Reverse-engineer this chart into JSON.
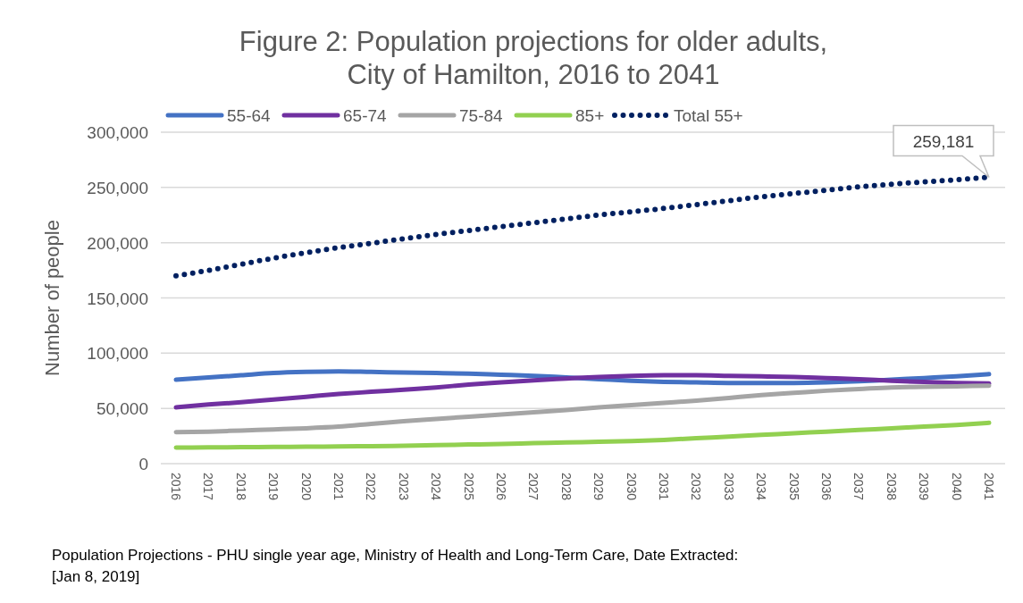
{
  "chart_data": {
    "type": "line",
    "title": "Figure 2: Population projections for older adults, City of Hamilton, 2016 to 2041",
    "ylabel": "Number of people",
    "categories": [
      "2016",
      "2017",
      "2018",
      "2019",
      "2020",
      "2021",
      "2022",
      "2023",
      "2024",
      "2025",
      "2026",
      "2027",
      "2028",
      "2029",
      "2030",
      "2031",
      "2032",
      "2033",
      "2034",
      "2035",
      "2036",
      "2037",
      "2038",
      "2039",
      "2040",
      "2041"
    ],
    "series": [
      {
        "name": "55-64",
        "color": "#4472c4",
        "line_style": "solid",
        "values": [
          76000,
          78000,
          80000,
          82000,
          83000,
          83500,
          83000,
          82500,
          82000,
          81500,
          80500,
          79500,
          78000,
          76500,
          75000,
          74000,
          73500,
          73000,
          73000,
          73000,
          73500,
          74500,
          76000,
          77500,
          79000,
          81000
        ]
      },
      {
        "name": "65-74",
        "color": "#7030a0",
        "line_style": "solid",
        "values": [
          51000,
          53500,
          55500,
          58000,
          60500,
          63000,
          65000,
          67000,
          69000,
          71500,
          73500,
          75500,
          77000,
          78500,
          79500,
          80000,
          80000,
          79500,
          79000,
          78500,
          77500,
          76500,
          75000,
          74000,
          73000,
          72500
        ]
      },
      {
        "name": "75-84",
        "color": "#a5a5a5",
        "line_style": "solid",
        "values": [
          28500,
          29000,
          30000,
          31000,
          32000,
          33500,
          36000,
          38500,
          40500,
          42500,
          44500,
          46500,
          48500,
          51000,
          53000,
          55000,
          57000,
          59500,
          62000,
          64000,
          66000,
          67500,
          69000,
          69500,
          70000,
          70500
        ]
      },
      {
        "name": "85+",
        "color": "#92d050",
        "line_style": "solid",
        "values": [
          14500,
          14700,
          14900,
          15100,
          15300,
          15500,
          15800,
          16200,
          16700,
          17300,
          17800,
          18500,
          19200,
          19800,
          20500,
          21500,
          23000,
          24500,
          26000,
          27500,
          29000,
          30500,
          32000,
          33500,
          35000,
          37000
        ]
      },
      {
        "name": "Total 55+",
        "color": "#002060",
        "line_style": "dotted",
        "values": [
          170000,
          175000,
          180500,
          186000,
          191000,
          195500,
          199500,
          203500,
          207500,
          211000,
          214500,
          218000,
          221500,
          225000,
          228000,
          231000,
          234500,
          238000,
          241500,
          244500,
          247500,
          250500,
          253000,
          255000,
          257000,
          259181
        ],
        "value_labels": [
          null,
          null,
          null,
          null,
          null,
          null,
          null,
          null,
          null,
          null,
          null,
          null,
          null,
          null,
          null,
          null,
          null,
          null,
          null,
          null,
          null,
          null,
          null,
          null,
          null,
          "259,181"
        ]
      }
    ],
    "ylim": [
      0,
      300000
    ],
    "yticks": [
      {
        "value": 0,
        "label": "0"
      },
      {
        "value": 50000,
        "label": "50,000"
      },
      {
        "value": 100000,
        "label": "100,000"
      },
      {
        "value": 150000,
        "label": "150,000"
      },
      {
        "value": 200000,
        "label": "200,000"
      },
      {
        "value": 250000,
        "label": "250,000"
      },
      {
        "value": 300000,
        "label": "300,000"
      }
    ],
    "grid": "y",
    "legend": "top",
    "marker": "none",
    "annotations": [
      "Population Projections - PHU single year age, Ministry of Health and Long-Term Care, Date Extracted: [Jan 8, 2019]"
    ]
  }
}
